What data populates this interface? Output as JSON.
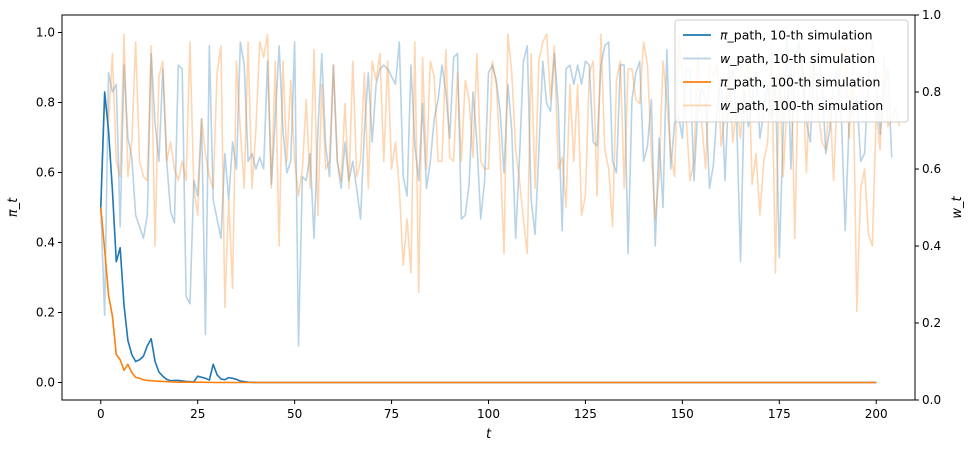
{
  "chart_data": {
    "type": "line",
    "xlabel": "t",
    "ylabel_left": "π_t",
    "ylabel_right": "w_t",
    "xlim": [
      -10,
      210
    ],
    "ylim_left": [
      -0.05,
      1.05
    ],
    "ylim_right": [
      0,
      1
    ],
    "xticks": [
      0,
      25,
      50,
      75,
      100,
      125,
      150,
      175,
      200
    ],
    "yticks_left": [
      "0.0",
      "0.2",
      "0.4",
      "0.6",
      "0.8",
      "1.0"
    ],
    "yticks_right": [
      "0.0",
      "0.2",
      "0.4",
      "0.6",
      "0.8",
      "1.0"
    ],
    "legend_position": "upper-right",
    "series": [
      {
        "name": "π_path, 10-th simulation",
        "label_parts": [
          "π",
          "_path, 10-th simulation"
        ],
        "axis": "left",
        "color": "#1f77b4",
        "alpha": 1,
        "x": [
          0,
          1,
          2,
          3,
          4,
          5,
          6,
          7,
          8,
          9,
          10,
          11,
          12,
          13,
          14,
          15,
          16,
          17,
          18,
          19,
          20,
          22,
          24,
          25,
          26,
          27,
          28,
          29,
          30,
          31,
          32,
          33,
          34,
          35,
          36,
          38,
          40,
          50,
          100,
          150,
          200
        ],
        "y": [
          0.5,
          0.83,
          0.72,
          0.55,
          0.345,
          0.385,
          0.22,
          0.12,
          0.08,
          0.06,
          0.065,
          0.075,
          0.105,
          0.125,
          0.06,
          0.03,
          0.018,
          0.009,
          0.005,
          0.006,
          0.006,
          0.003,
          0.002,
          0.018,
          0.015,
          0.012,
          0.007,
          0.052,
          0.022,
          0.01,
          0.008,
          0.014,
          0.012,
          0.009,
          0.004,
          0.001,
          0.0,
          0.0,
          0.0,
          0.0,
          0.0
        ]
      },
      {
        "name": "w_path, 10-th simulation",
        "label_parts": [
          "w",
          "_path, 10-th simulation"
        ],
        "axis": "right",
        "color": "#1f77b4",
        "alpha": 0.32,
        "x_start": 0,
        "x_step": 1,
        "y": [
          0.5,
          0.22,
          0.85,
          0.8,
          0.82,
          0.45,
          0.87,
          0.68,
          0.63,
          0.48,
          0.45,
          0.42,
          0.48,
          0.9,
          0.72,
          0.62,
          0.86,
          0.62,
          0.49,
          0.46,
          0.87,
          0.86,
          0.27,
          0.25,
          0.57,
          0.53,
          0.73,
          0.17,
          0.92,
          0.52,
          0.47,
          0.42,
          0.64,
          0.52,
          0.67,
          0.6,
          0.93,
          0.87,
          0.62,
          0.64,
          0.6,
          0.63,
          0.6,
          0.88,
          0.56,
          0.73,
          0.92,
          0.7,
          0.59,
          0.62,
          0.93,
          0.14,
          0.58,
          0.57,
          0.64,
          0.42,
          0.7,
          0.9,
          0.66,
          0.58,
          0.87,
          0.62,
          0.55,
          0.67,
          0.57,
          0.62,
          0.55,
          0.47,
          0.7,
          0.85,
          0.67,
          0.82,
          0.86,
          0.87,
          0.86,
          0.84,
          0.82,
          0.93,
          0.58,
          0.53,
          0.87,
          0.66,
          0.57,
          0.77,
          0.55,
          0.62,
          0.73,
          0.78,
          0.87,
          0.8,
          0.68,
          0.89,
          0.9,
          0.47,
          0.48,
          0.56,
          0.8,
          0.67,
          0.47,
          0.57,
          0.85,
          0.87,
          0.83,
          0.75,
          0.59,
          0.82,
          0.7,
          0.42,
          0.63,
          0.88,
          0.92,
          0.52,
          0.43,
          0.65,
          0.88,
          0.77,
          0.75,
          0.9,
          0.76,
          0.44,
          0.86,
          0.87,
          0.82,
          0.87,
          0.82,
          0.88,
          0.87,
          0.67,
          0.66,
          0.87,
          0.92,
          0.93,
          0.62,
          0.59,
          0.87,
          0.87,
          0.38,
          0.78,
          0.85,
          0.88,
          0.62,
          0.66,
          0.78,
          0.4,
          0.68,
          0.5,
          0.91,
          0.6,
          0.72,
          0.74,
          0.68,
          0.86,
          0.86,
          0.57,
          0.76,
          0.81,
          0.78,
          0.55,
          0.61,
          0.76,
          0.83,
          0.57,
          0.82,
          0.86,
          0.73,
          0.36,
          0.8,
          0.71,
          0.78,
          0.85,
          0.68,
          0.75,
          0.82,
          0.73,
          0.84,
          0.37,
          0.7,
          0.94,
          0.6,
          0.88,
          0.93,
          0.86,
          0.72,
          0.67,
          0.89,
          0.91,
          0.83,
          0.64,
          0.7,
          0.82,
          0.86,
          0.74,
          0.44,
          0.72,
          0.76,
          0.79,
          0.62,
          0.64,
          0.84,
          0.93,
          0.83,
          0.69,
          0.81,
          0.86,
          0.63
        ]
      },
      {
        "name": "π_path, 100-th simulation",
        "label_parts": [
          "π",
          "_path, 100-th simulation"
        ],
        "axis": "left",
        "color": "#ff7f0e",
        "alpha": 1,
        "x": [
          0,
          1,
          2,
          3,
          4,
          5,
          6,
          7,
          8,
          9,
          10,
          11,
          12,
          14,
          16,
          18,
          20,
          25,
          30,
          40,
          50,
          100,
          150,
          200
        ],
        "y": [
          0.5,
          0.38,
          0.25,
          0.19,
          0.08,
          0.065,
          0.035,
          0.052,
          0.028,
          0.015,
          0.012,
          0.008,
          0.006,
          0.004,
          0.003,
          0.002,
          0.001,
          0.001,
          0.0,
          0.0,
          0.0,
          0.0,
          0.0,
          0.0
        ]
      },
      {
        "name": "w_path, 100-th simulation",
        "label_parts": [
          "w",
          "_path, 100-th simulation"
        ],
        "axis": "right",
        "color": "#ff7f0e",
        "alpha": 0.32,
        "x_start": 0,
        "x_step": 1,
        "y": [
          0.5,
          0.78,
          0.72,
          0.9,
          0.62,
          0.58,
          0.95,
          0.58,
          0.67,
          0.93,
          0.62,
          0.58,
          0.57,
          0.92,
          0.4,
          0.84,
          0.88,
          0.62,
          0.67,
          0.6,
          0.57,
          0.62,
          0.57,
          0.93,
          0.55,
          0.48,
          0.73,
          0.64,
          0.58,
          0.55,
          0.85,
          0.92,
          0.24,
          0.52,
          0.29,
          0.88,
          0.7,
          0.55,
          0.93,
          0.55,
          0.7,
          0.93,
          0.89,
          0.95,
          0.55,
          0.88,
          0.4,
          0.88,
          0.62,
          0.83,
          0.62,
          0.53,
          0.6,
          0.78,
          0.55,
          0.91,
          0.48,
          0.82,
          0.6,
          0.62,
          0.87,
          0.62,
          0.57,
          0.77,
          0.55,
          0.88,
          0.58,
          0.62,
          0.85,
          0.55,
          0.88,
          0.83,
          0.9,
          0.62,
          0.88,
          0.6,
          0.67,
          0.55,
          0.35,
          0.47,
          0.33,
          0.93,
          0.28,
          0.89,
          0.6,
          0.88,
          0.84,
          0.62,
          0.62,
          0.91,
          0.63,
          0.62,
          0.85,
          0.62,
          0.83,
          0.78,
          0.63,
          0.9,
          0.62,
          0.6,
          0.6,
          0.88,
          0.82,
          0.64,
          0.38,
          0.95,
          0.85,
          0.65,
          0.57,
          0.47,
          0.38,
          0.9,
          0.55,
          0.88,
          0.93,
          0.95,
          0.78,
          0.92,
          0.6,
          0.63,
          0.5,
          0.82,
          0.62,
          0.82,
          0.48,
          0.53,
          0.85,
          0.88,
          0.53,
          0.95,
          0.65,
          0.6,
          0.45,
          0.83,
          0.88,
          0.55,
          0.86,
          0.86,
          0.78,
          0.77,
          0.93,
          0.87,
          0.64,
          0.47,
          0.58,
          0.88,
          0.78,
          0.64,
          0.58,
          0.95,
          0.84,
          0.73,
          0.57,
          0.62,
          0.9,
          0.72,
          0.6,
          0.87,
          0.84,
          0.87,
          0.66,
          0.74,
          0.86,
          0.67,
          0.76,
          0.68,
          0.83,
          0.9,
          0.56,
          0.64,
          0.48,
          0.62,
          0.67,
          0.92,
          0.33,
          0.87,
          0.58,
          0.77,
          0.89,
          0.42,
          0.88,
          0.85,
          0.59,
          0.86,
          0.87,
          0.75,
          0.67,
          0.65,
          0.79,
          0.57,
          0.81,
          0.88,
          0.92,
          0.68,
          0.87,
          0.23,
          0.55,
          0.6,
          0.43,
          0.4,
          0.75,
          0.65,
          0.89,
          0.71,
          0.73,
          0.76,
          0.71
        ]
      }
    ]
  }
}
